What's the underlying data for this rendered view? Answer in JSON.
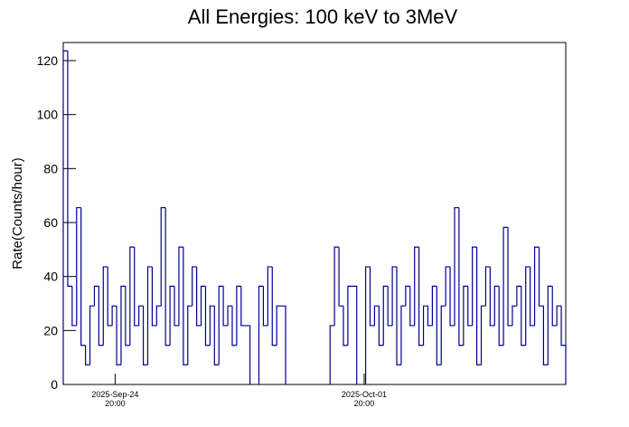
{
  "chart_data": {
    "type": "step",
    "title": "All Energies:  100 keV to 3MeV",
    "y_label": "Rate(Counts/hour)",
    "xlim": [
      "2025-09-23T09:00",
      "2025-10-07T12:00"
    ],
    "xticks": [
      {
        "value": "2025-09-24T20:00",
        "label": "2025-Sep-24\n20:00"
      },
      {
        "value": "2025-10-01T20:00",
        "label": "2025-Oct-01\n20:00"
      }
    ],
    "ylim": [
      0,
      126.7
    ],
    "yticks": [
      0,
      20,
      40,
      60,
      80,
      100,
      120
    ],
    "series": [
      {
        "color": "#000090",
        "x": [
          "2025-09-23T09:00",
          "2025-09-23T12:00",
          "2025-09-23T15:00",
          "2025-09-23T18:00",
          "2025-09-23T21:00",
          "2025-09-24T00:00",
          "2025-09-24T03:00",
          "2025-09-24T06:00",
          "2025-09-24T09:00",
          "2025-09-24T12:00",
          "2025-09-24T15:00",
          "2025-09-24T18:00",
          "2025-09-24T21:00",
          "2025-09-25T00:00",
          "2025-09-25T03:00",
          "2025-09-25T06:00",
          "2025-09-25T09:00",
          "2025-09-25T12:00",
          "2025-09-25T15:00",
          "2025-09-25T18:00",
          "2025-09-25T21:00",
          "2025-09-26T00:00",
          "2025-09-26T03:00",
          "2025-09-26T06:00",
          "2025-09-26T09:00",
          "2025-09-26T12:00",
          "2025-09-26T15:00",
          "2025-09-26T18:00",
          "2025-09-26T21:00",
          "2025-09-27T00:00",
          "2025-09-27T03:00",
          "2025-09-27T06:00",
          "2025-09-27T09:00",
          "2025-09-27T12:00",
          "2025-09-27T15:00",
          "2025-09-27T18:00",
          "2025-09-27T21:00",
          "2025-09-28T00:00",
          "2025-09-28T03:00",
          "2025-09-28T06:00",
          "2025-09-28T09:00",
          "2025-09-28T15:00",
          "2025-09-28T21:00",
          "2025-09-29T00:00",
          "2025-09-29T03:00",
          "2025-09-29T06:00",
          "2025-09-29T09:00",
          "2025-09-29T15:00",
          "2025-09-30T21:00",
          "2025-10-01T00:00",
          "2025-10-01T03:00",
          "2025-10-01T06:00",
          "2025-10-01T09:00",
          "2025-10-01T15:00",
          "2025-10-01T21:00",
          "2025-10-02T00:00",
          "2025-10-02T03:00",
          "2025-10-02T06:00",
          "2025-10-02T09:00",
          "2025-10-02T12:00",
          "2025-10-02T15:00",
          "2025-10-02T18:00",
          "2025-10-02T21:00",
          "2025-10-03T00:00",
          "2025-10-03T03:00",
          "2025-10-03T06:00",
          "2025-10-03T09:00",
          "2025-10-03T12:00",
          "2025-10-03T15:00",
          "2025-10-03T18:00",
          "2025-10-03T21:00",
          "2025-10-04T00:00",
          "2025-10-04T03:00",
          "2025-10-04T06:00",
          "2025-10-04T09:00",
          "2025-10-04T12:00",
          "2025-10-04T15:00",
          "2025-10-04T18:00",
          "2025-10-04T21:00",
          "2025-10-05T00:00",
          "2025-10-05T03:00",
          "2025-10-05T06:00",
          "2025-10-05T09:00",
          "2025-10-05T12:00",
          "2025-10-05T15:00",
          "2025-10-05T18:00",
          "2025-10-05T21:00",
          "2025-10-06T00:00",
          "2025-10-06T03:00",
          "2025-10-06T06:00",
          "2025-10-06T09:00",
          "2025-10-06T12:00",
          "2025-10-06T15:00",
          "2025-10-06T18:00",
          "2025-10-06T21:00",
          "2025-10-07T00:00",
          "2025-10-07T03:00",
          "2025-10-07T06:00",
          "2025-10-07T09:00"
        ],
        "values": [
          123.6,
          36.4,
          21.8,
          65.5,
          14.5,
          7.3,
          29.1,
          36.4,
          14.5,
          43.6,
          21.8,
          29.1,
          7.3,
          36.4,
          14.5,
          50.9,
          21.8,
          29.1,
          7.3,
          43.6,
          21.8,
          29.1,
          65.5,
          14.5,
          36.4,
          21.8,
          50.9,
          7.3,
          29.1,
          43.6,
          21.8,
          36.4,
          14.5,
          29.1,
          7.3,
          36.4,
          21.8,
          29.1,
          14.5,
          36.4,
          21.8,
          null,
          36.4,
          21.8,
          43.6,
          14.5,
          29.1,
          null,
          21.8,
          50.9,
          29.1,
          14.5,
          36.4,
          null,
          43.6,
          21.8,
          29.1,
          14.5,
          36.4,
          21.8,
          43.6,
          7.3,
          29.1,
          36.4,
          21.8,
          50.9,
          14.5,
          29.1,
          21.8,
          36.4,
          7.3,
          29.1,
          43.6,
          21.8,
          65.5,
          14.5,
          36.4,
          21.8,
          50.9,
          7.3,
          29.1,
          43.6,
          21.8,
          36.4,
          14.5,
          58.2,
          21.8,
          29.1,
          36.4,
          14.5,
          43.6,
          21.8,
          50.9,
          29.1,
          7.3,
          36.4,
          21.8,
          29.1,
          14.5
        ]
      }
    ]
  }
}
